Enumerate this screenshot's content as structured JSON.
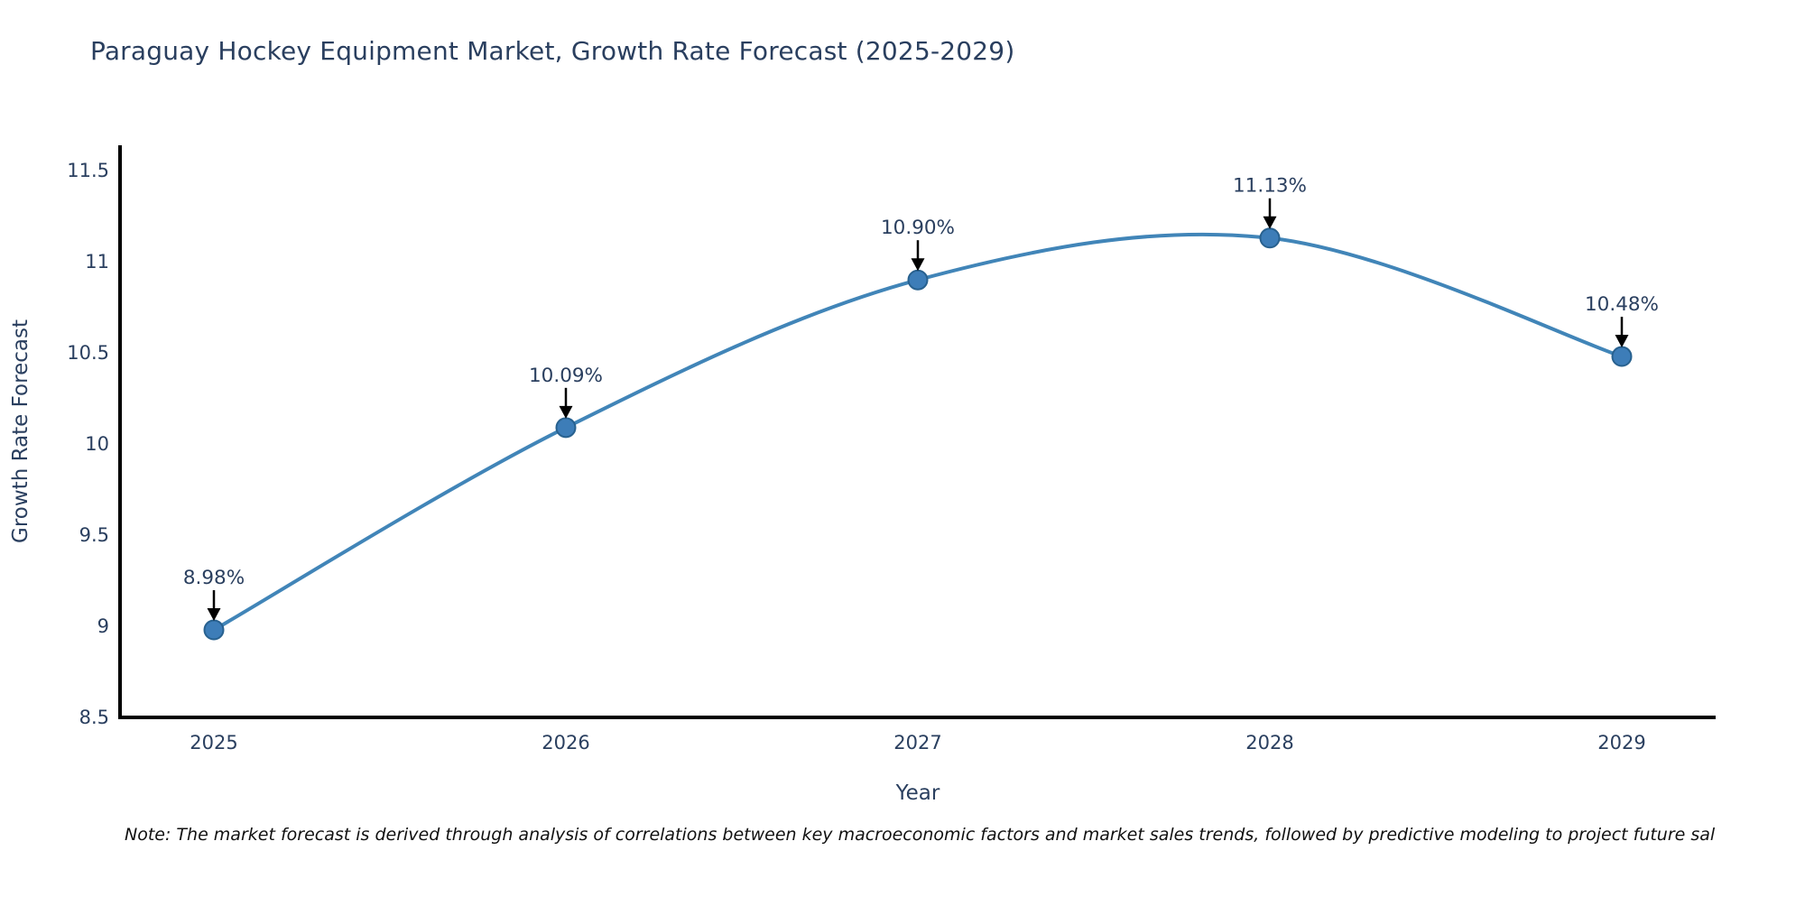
{
  "title": "Paraguay Hockey Equipment Market, Growth Rate Forecast (2025-2029)",
  "note": "Note: The market forecast is derived through analysis of correlations between key macroeconomic factors and market sales trends, followed by predictive modeling to project future sal",
  "chart_data": {
    "type": "line",
    "title": "Paraguay Hockey Equipment Market, Growth Rate Forecast (2025-2029)",
    "categories": [
      "2025",
      "2026",
      "2027",
      "2028",
      "2029"
    ],
    "x": [
      2025,
      2026,
      2027,
      2028,
      2029
    ],
    "series": [
      {
        "name": "Growth Rate Forecast",
        "values": [
          8.98,
          10.09,
          10.9,
          11.13,
          10.48
        ]
      }
    ],
    "point_labels": [
      "8.98%",
      "10.09%",
      "10.90%",
      "11.13%",
      "10.48%"
    ],
    "xlabel": "Year",
    "ylabel": "Growth Rate Forecast",
    "ylim": [
      8.5,
      11.64
    ],
    "yticks": [
      8.5,
      9,
      9.5,
      10,
      10.5,
      11,
      11.5
    ],
    "line_shape": "spline",
    "grid": false,
    "legend": false,
    "colors": {
      "line": "#4185b8",
      "marker_fill": "#3d7db8",
      "marker_stroke": "#28618f",
      "axis": "#000000",
      "tick_text": "#2a3f5f",
      "annotation_text": "#2a3f5f",
      "annotation_arrow": "#000000"
    }
  }
}
